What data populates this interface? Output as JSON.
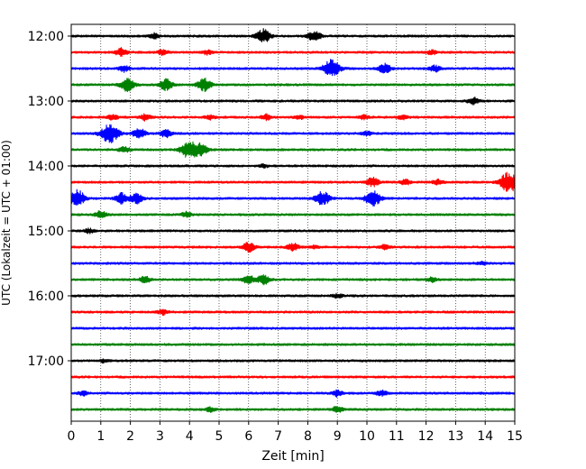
{
  "chart_data": {
    "type": "line",
    "title": "",
    "xlabel": "Zeit  [min]",
    "ylabel": "UTC (Lokalzeit = UTC + 01:00)",
    "xlim": [
      0,
      15
    ],
    "x_ticks": [
      "0",
      "1",
      "2",
      "3",
      "4",
      "5",
      "6",
      "7",
      "8",
      "9",
      "10",
      "11",
      "12",
      "13",
      "14",
      "15"
    ],
    "y_tick_labels": [
      "12:00",
      "13:00",
      "14:00",
      "15:00",
      "16:00",
      "17:00"
    ],
    "grid": "vertical dotted",
    "trace_minutes": 15,
    "colors": [
      "#000000",
      "#ff0000",
      "#0000ff",
      "#008000"
    ],
    "traces": [
      {
        "start": "12:00",
        "color": "#000000",
        "events": [
          [
            2.8,
            0.5
          ],
          [
            6.5,
            1.3
          ],
          [
            8.1,
            0.5
          ],
          [
            8.3,
            0.6
          ]
        ]
      },
      {
        "start": "12:15",
        "color": "#ff0000",
        "events": [
          [
            1.7,
            0.8
          ],
          [
            3.1,
            0.5
          ],
          [
            4.6,
            0.4
          ],
          [
            12.2,
            0.4
          ]
        ]
      },
      {
        "start": "12:30",
        "color": "#0000ff",
        "events": [
          [
            1.8,
            0.6
          ],
          [
            8.8,
            1.8
          ],
          [
            10.6,
            0.9
          ],
          [
            12.3,
            0.6
          ]
        ]
      },
      {
        "start": "12:45",
        "color": "#008000",
        "events": [
          [
            1.9,
            1.2
          ],
          [
            3.2,
            1.1
          ],
          [
            4.5,
            1.2
          ]
        ]
      },
      {
        "start": "13:00",
        "color": "#000000",
        "events": [
          [
            13.6,
            0.7
          ]
        ]
      },
      {
        "start": "13:15",
        "color": "#ff0000",
        "events": [
          [
            1.4,
            0.5
          ],
          [
            2.5,
            0.6
          ],
          [
            4.7,
            0.4
          ],
          [
            6.6,
            0.5
          ],
          [
            7.7,
            0.4
          ],
          [
            9.9,
            0.4
          ],
          [
            11.2,
            0.4
          ]
        ]
      },
      {
        "start": "13:30",
        "color": "#0000ff",
        "events": [
          [
            1.3,
            1.9
          ],
          [
            2.3,
            1.0
          ],
          [
            3.2,
            0.7
          ],
          [
            10.0,
            0.4
          ]
        ]
      },
      {
        "start": "13:45",
        "color": "#008000",
        "events": [
          [
            1.8,
            0.6
          ],
          [
            4.0,
            1.8
          ],
          [
            4.4,
            1.0
          ]
        ]
      },
      {
        "start": "14:00",
        "color": "#000000",
        "events": [
          [
            6.5,
            0.3
          ]
        ]
      },
      {
        "start": "14:15",
        "color": "#ff0000",
        "events": [
          [
            10.2,
            0.9
          ],
          [
            11.3,
            0.5
          ],
          [
            12.4,
            0.5
          ],
          [
            14.8,
            2.0
          ]
        ]
      },
      {
        "start": "14:30",
        "color": "#0000ff",
        "events": [
          [
            0.2,
            1.6
          ],
          [
            1.7,
            1.0
          ],
          [
            2.2,
            1.0
          ],
          [
            8.5,
            1.3
          ],
          [
            10.2,
            1.5
          ]
        ]
      },
      {
        "start": "14:45",
        "color": "#008000",
        "events": [
          [
            1.0,
            0.7
          ],
          [
            3.9,
            0.5
          ]
        ]
      },
      {
        "start": "15:00",
        "color": "#000000",
        "events": [
          [
            0.6,
            0.4
          ]
        ]
      },
      {
        "start": "15:15",
        "color": "#ff0000",
        "events": [
          [
            6.0,
            0.9
          ],
          [
            7.5,
            0.7
          ],
          [
            8.2,
            0.3
          ],
          [
            10.6,
            0.4
          ]
        ]
      },
      {
        "start": "15:30",
        "color": "#0000ff",
        "events": [
          [
            13.9,
            0.3
          ]
        ]
      },
      {
        "start": "15:45",
        "color": "#008000",
        "events": [
          [
            2.5,
            0.6
          ],
          [
            6.0,
            0.8
          ],
          [
            6.5,
            0.9
          ],
          [
            12.2,
            0.4
          ]
        ]
      },
      {
        "start": "16:00",
        "color": "#000000",
        "events": [
          [
            9.0,
            0.4
          ]
        ]
      },
      {
        "start": "16:15",
        "color": "#ff0000",
        "events": [
          [
            3.1,
            0.5
          ]
        ]
      },
      {
        "start": "16:30",
        "color": "#0000ff",
        "events": []
      },
      {
        "start": "16:45",
        "color": "#008000",
        "events": []
      },
      {
        "start": "17:00",
        "color": "#000000",
        "events": [
          [
            1.1,
            0.3
          ]
        ]
      },
      {
        "start": "17:15",
        "color": "#ff0000",
        "events": []
      },
      {
        "start": "17:30",
        "color": "#0000ff",
        "events": [
          [
            0.4,
            0.4
          ],
          [
            9.0,
            0.6
          ],
          [
            10.5,
            0.5
          ]
        ]
      },
      {
        "start": "17:45",
        "color": "#008000",
        "events": [
          [
            4.7,
            0.4
          ],
          [
            9.0,
            0.6
          ]
        ]
      }
    ]
  }
}
